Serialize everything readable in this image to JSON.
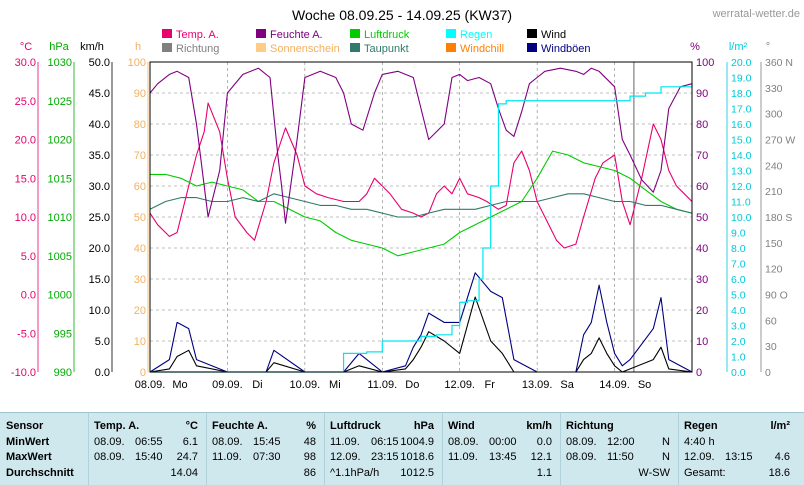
{
  "header": {
    "title": "Woche 08.09.25 - 14.09.25 (KW37)",
    "site": "werratal-wetter.de"
  },
  "axis_units": {
    "temp": "°C",
    "pressure": "hPa",
    "wind": "km/h",
    "sun": "h",
    "humidity": "%",
    "rain": "l/m²",
    "direction": "°"
  },
  "legend": [
    {
      "label": "Temp. A.",
      "color": "#e8006e"
    },
    {
      "label": "Richtung",
      "color": "#808080"
    },
    {
      "label": "Feuchte A.",
      "color": "#800080"
    },
    {
      "label": "Sonnenschein",
      "color": "#ffcc88"
    },
    {
      "label": "Luftdruck",
      "color": "#00cc00"
    },
    {
      "label": "Taupunkt",
      "color": "#2f7a6a"
    },
    {
      "label": "Regen",
      "color": "#00ffff"
    },
    {
      "label": "Windchill",
      "color": "#ff8000"
    },
    {
      "label": "Wind",
      "color": "#000000"
    },
    {
      "label": "Windböen",
      "color": "#000080"
    }
  ],
  "colors": {
    "temp": "#e8006e",
    "pressure": "#00cc00",
    "wind": "#000000",
    "gust": "#000080",
    "humidity": "#800080",
    "rain": "#00e5ee",
    "sun": "#ffcc88",
    "dew": "#2f7a6a",
    "grid": "#808080"
  },
  "chart_data": {
    "type": "line",
    "title": "Woche 08.09.25 - 14.09.25 (KW37)",
    "x_labels": [
      "08.09.",
      "Mo",
      "09.09.",
      "Di",
      "10.09.",
      "Mi",
      "11.09.",
      "Do",
      "12.09.",
      "Fr",
      "13.09.",
      "Sa",
      "14.09.",
      "So"
    ],
    "x_range_days": [
      0,
      7
    ],
    "y_axes": {
      "temp": {
        "unit": "°C",
        "range": [
          -10,
          30
        ],
        "ticks": [
          "30.0",
          "25.0",
          "20.0",
          "15.0",
          "10.0",
          "5.0",
          "0.0",
          "-5.0",
          "-10.0"
        ]
      },
      "pressure": {
        "unit": "hPa",
        "range": [
          990,
          1030
        ],
        "ticks": [
          "1030",
          "1025",
          "1020",
          "1015",
          "1010",
          "1005",
          "1000",
          "995",
          "990"
        ]
      },
      "wind": {
        "unit": "km/h",
        "range": [
          0,
          50
        ],
        "ticks": [
          "50.0",
          "45.0",
          "40.0",
          "35.0",
          "30.0",
          "25.0",
          "20.0",
          "15.0",
          "10.0",
          "5.0",
          "0.0"
        ]
      },
      "sun": {
        "unit": "h",
        "range": [
          0,
          100
        ],
        "ticks": [
          "100",
          "90",
          "80",
          "70",
          "60",
          "50",
          "40",
          "30",
          "20",
          "10",
          "0"
        ]
      },
      "humidity": {
        "unit": "%",
        "range": [
          0,
          100
        ],
        "ticks": [
          "100",
          "90",
          "80",
          "70",
          "60",
          "50",
          "40",
          "30",
          "20",
          "10",
          "0"
        ]
      },
      "rain": {
        "unit": "l/m²",
        "range": [
          0,
          20
        ],
        "ticks": [
          "20.0",
          "19.0",
          "18.0",
          "17.0",
          "16.0",
          "15.0",
          "14.0",
          "13.0",
          "12.0",
          "11.0",
          "10.0",
          "9.0",
          "8.0",
          "7.0",
          "6.0",
          "5.0",
          "4.0",
          "3.0",
          "2.0",
          "1.0",
          "0.0"
        ]
      },
      "direction": {
        "unit": "°",
        "range": [
          0,
          360
        ],
        "ticks": [
          "360 N",
          "330",
          "300",
          "270 W",
          "240",
          "210",
          "180 S",
          "150",
          "120",
          "90 O",
          "60",
          "30",
          "0"
        ]
      }
    },
    "grid": true,
    "series": [
      {
        "name": "Temp. A.",
        "axis": "temp",
        "x": [
          0,
          0.1,
          0.25,
          0.35,
          0.5,
          0.6,
          0.7,
          0.75,
          0.9,
          1.0,
          1.1,
          1.25,
          1.35,
          1.5,
          1.6,
          1.7,
          1.75,
          1.9,
          2.0,
          2.15,
          2.3,
          2.5,
          2.7,
          2.8,
          2.9,
          3.0,
          3.1,
          3.25,
          3.4,
          3.5,
          3.6,
          3.7,
          3.8,
          3.9,
          4.0,
          4.1,
          4.25,
          4.35,
          4.5,
          4.6,
          4.7,
          4.8,
          4.9,
          5.0,
          5.1,
          5.25,
          5.35,
          5.5,
          5.6,
          5.75,
          5.85,
          6.0,
          6.1,
          6.2,
          6.35,
          6.5,
          6.6,
          6.7,
          6.8,
          6.9,
          7.0
        ],
        "y": [
          10.5,
          9,
          7.5,
          8,
          14,
          18,
          21,
          24.7,
          21,
          15,
          10,
          8,
          7,
          12,
          17,
          20,
          21.5,
          18,
          14,
          13,
          12.5,
          12,
          12,
          13,
          15,
          14,
          13,
          11,
          10.5,
          10,
          10.5,
          13,
          14,
          13,
          15,
          13,
          12.5,
          12,
          11,
          11.5,
          17,
          18.5,
          16,
          12,
          10,
          7,
          6,
          6.5,
          10,
          15,
          17,
          18,
          12,
          9,
          15,
          22,
          20,
          16,
          14,
          13,
          12
        ]
      },
      {
        "name": "Luftdruck",
        "axis": "pressure",
        "x": [
          0,
          0.2,
          0.4,
          0.6,
          0.8,
          1.0,
          1.2,
          1.4,
          1.6,
          1.8,
          2.0,
          2.2,
          2.4,
          2.6,
          2.8,
          3.0,
          3.1,
          3.2,
          3.4,
          3.6,
          3.8,
          4.0,
          4.2,
          4.4,
          4.6,
          4.8,
          5.0,
          5.2,
          5.4,
          5.6,
          5.8,
          6.0,
          6.2,
          6.4,
          6.6,
          6.8,
          7.0
        ],
        "y": [
          1015.5,
          1015.5,
          1015,
          1014,
          1014.5,
          1014,
          1013.5,
          1012,
          1012,
          1011,
          1010,
          1009.5,
          1008,
          1007,
          1006.5,
          1006,
          1005.5,
          1005,
          1005.5,
          1006,
          1006.5,
          1008,
          1009,
          1010,
          1011,
          1012,
          1015,
          1018.5,
          1018,
          1017,
          1016.5,
          1016,
          1015,
          1013.5,
          1012,
          1011,
          1010.5
        ]
      },
      {
        "name": "Taupunkt",
        "axis": "temp",
        "x": [
          0,
          0.2,
          0.4,
          0.6,
          0.8,
          1.0,
          1.2,
          1.4,
          1.6,
          1.8,
          2.0,
          2.2,
          2.4,
          2.6,
          2.8,
          3.0,
          3.2,
          3.4,
          3.6,
          3.8,
          4.0,
          4.2,
          4.4,
          4.6,
          4.8,
          5.0,
          5.2,
          5.4,
          5.6,
          5.8,
          6.0,
          6.2,
          6.4,
          6.6,
          6.8,
          7.0
        ],
        "y": [
          11,
          12,
          12.5,
          12.5,
          12,
          12,
          12.5,
          12,
          13,
          12.5,
          12,
          11.5,
          11.5,
          11,
          11,
          10.5,
          10,
          10,
          10.5,
          11,
          11,
          11,
          11.5,
          12,
          12,
          12,
          12.5,
          13,
          13,
          12.5,
          12,
          12,
          11.5,
          11.5,
          11,
          10.5
        ]
      },
      {
        "name": "Feuchte A.",
        "axis": "humidity",
        "x": [
          0,
          0.1,
          0.25,
          0.35,
          0.5,
          0.6,
          0.7,
          0.75,
          0.9,
          1.0,
          1.2,
          1.4,
          1.55,
          1.65,
          1.7,
          1.75,
          1.9,
          2.0,
          2.2,
          2.4,
          2.5,
          2.6,
          2.75,
          2.9,
          3.0,
          3.2,
          3.4,
          3.5,
          3.6,
          3.8,
          3.9,
          4.0,
          4.1,
          4.25,
          4.4,
          4.5,
          4.6,
          4.7,
          4.8,
          4.9,
          5.0,
          5.1,
          5.3,
          5.5,
          5.6,
          5.7,
          5.8,
          6.0,
          6.1,
          6.2,
          6.35,
          6.5,
          6.6,
          6.7,
          6.85,
          7.0
        ],
        "y": [
          90,
          93,
          96,
          97,
          95,
          80,
          60,
          50,
          65,
          90,
          96,
          98,
          95,
          70,
          60,
          48,
          75,
          95,
          97,
          95,
          90,
          80,
          78,
          90,
          96,
          97,
          95,
          85,
          75,
          80,
          95,
          96,
          94,
          95,
          93,
          85,
          78,
          76,
          84,
          93,
          95,
          97,
          98,
          97,
          96,
          98,
          97,
          92,
          75,
          70,
          62,
          58,
          65,
          85,
          92,
          93
        ]
      },
      {
        "name": "Wind",
        "axis": "wind",
        "x": [
          0,
          0.25,
          0.35,
          0.5,
          0.6,
          1.0,
          1.5,
          1.6,
          2.0,
          2.5,
          2.7,
          3.0,
          3.3,
          3.4,
          3.5,
          3.6,
          3.8,
          4.0,
          4.2,
          4.4,
          4.55,
          4.7,
          5.0,
          5.5,
          5.6,
          5.7,
          5.8,
          5.9,
          6.0,
          6.1,
          6.2,
          6.5,
          6.6,
          6.7,
          7.0
        ],
        "y": [
          0,
          0.5,
          2.5,
          3.5,
          1,
          0,
          0,
          1.5,
          0,
          0,
          1,
          0,
          0.5,
          2,
          4,
          6.5,
          5,
          3,
          12.1,
          5,
          3,
          0,
          0,
          0,
          2,
          3,
          5.5,
          3,
          1,
          0,
          0.5,
          2,
          4,
          0.5,
          0
        ]
      },
      {
        "name": "Windböen",
        "axis": "wind",
        "x": [
          0,
          0.25,
          0.35,
          0.5,
          0.6,
          1.0,
          1.5,
          1.6,
          2.0,
          2.5,
          2.7,
          3.0,
          3.3,
          3.4,
          3.5,
          3.6,
          3.8,
          4.0,
          4.2,
          4.4,
          4.55,
          4.7,
          5.0,
          5.5,
          5.6,
          5.7,
          5.8,
          5.9,
          6.0,
          6.1,
          6.2,
          6.5,
          6.6,
          6.7,
          7.0
        ],
        "y": [
          0,
          2,
          8,
          7,
          2,
          0,
          0,
          3.5,
          0,
          0,
          3,
          0,
          1,
          4,
          6,
          9.5,
          8,
          8,
          16,
          13,
          12,
          2,
          0,
          0,
          6,
          8,
          14,
          8,
          3,
          1,
          2,
          7,
          12,
          2,
          0
        ]
      },
      {
        "name": "Regen",
        "axis": "rain",
        "x": [
          0,
          0.5,
          1.4,
          1.5,
          2.5,
          2.8,
          3.0,
          3.2,
          3.4,
          3.5,
          3.6,
          3.7,
          3.75,
          3.8,
          3.9,
          4.0,
          4.1,
          4.2,
          4.25,
          4.3,
          4.4,
          4.5,
          4.6,
          4.8,
          5.0,
          6.0,
          6.1,
          6.2,
          6.4,
          6.6,
          7.0
        ],
        "y": [
          0,
          0,
          0,
          0,
          1.2,
          1.3,
          2,
          2,
          2,
          2.3,
          2.3,
          2.4,
          2.4,
          2.4,
          3,
          4.5,
          4.6,
          4.6,
          6,
          8,
          12,
          17.3,
          17.5,
          17.5,
          17.5,
          17.5,
          17.5,
          17.8,
          18,
          18.4,
          18.6
        ]
      }
    ],
    "stats": {
      "row_labels": [
        "Sensor",
        "MinWert",
        "MaxWert",
        "Durchschnitt"
      ],
      "temp": {
        "header": "Temp. A.",
        "unit": "°C",
        "min_date": "08.09.",
        "min_time": "06:55",
        "min": "6.1",
        "max_date": "08.09.",
        "max_time": "15:40",
        "max": "24.7",
        "avg": "14.04"
      },
      "humidity": {
        "header": "Feuchte A.",
        "unit": "%",
        "min_date": "08.09.",
        "min_time": "15:45",
        "min": "48",
        "max_date": "11.09.",
        "max_time": "07:30",
        "max": "98",
        "avg": "86"
      },
      "pressure": {
        "header": "Luftdruck",
        "unit": "hPa",
        "min_date": "11.09.",
        "min_time": "06:15",
        "min": "1004.9",
        "max_date": "12.09.",
        "max_time": "23:15",
        "max": "1018.6",
        "avg_label": "^1.1hPa/h",
        "avg": "1012.5"
      },
      "wind": {
        "header": "Wind",
        "unit": "km/h",
        "min_date": "08.09.",
        "min_time": "00:00",
        "min": "0.0",
        "max_date": "11.09.",
        "max_time": "13:45",
        "max": "12.1",
        "avg": "1.1"
      },
      "direction": {
        "header": "Richtung",
        "min_date": "08.09.",
        "min_time": "12:00",
        "min": "N",
        "max_date": "08.09.",
        "max_time": "11:50",
        "max": "N",
        "avg": "W-SW"
      },
      "rain": {
        "header": "Regen",
        "unit": "l/m²",
        "min_time": "4:40 h",
        "max_date": "12.09.",
        "max_time": "13:15",
        "max": "4.6",
        "avg_label": "Gesamt:",
        "avg": "18.6"
      }
    }
  }
}
